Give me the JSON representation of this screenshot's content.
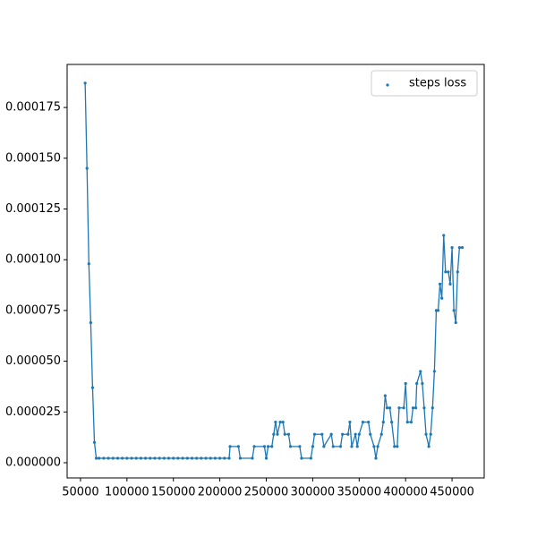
{
  "chart_data": {
    "type": "line",
    "markers": true,
    "x": [
      55000,
      57000,
      59000,
      61000,
      63000,
      65000,
      67000,
      70000,
      75000,
      80000,
      85000,
      90000,
      95000,
      100000,
      105000,
      110000,
      115000,
      120000,
      125000,
      130000,
      135000,
      140000,
      145000,
      150000,
      155000,
      160000,
      165000,
      170000,
      175000,
      180000,
      185000,
      190000,
      195000,
      200000,
      205000,
      210000,
      211000,
      220000,
      222000,
      235000,
      237000,
      248000,
      250000,
      252000,
      256000,
      258000,
      260000,
      262000,
      265000,
      268000,
      270000,
      274000,
      276000,
      286000,
      288000,
      298000,
      300000,
      302000,
      310000,
      312000,
      320000,
      322000,
      330000,
      332000,
      338000,
      340000,
      342000,
      346000,
      348000,
      350000,
      354000,
      360000,
      362000,
      366000,
      368000,
      370000,
      374000,
      376000,
      378000,
      380000,
      383000,
      385000,
      388000,
      391000,
      393000,
      398000,
      400000,
      402000,
      406000,
      408000,
      411000,
      412000,
      416000,
      418000,
      420000,
      422000,
      425000,
      427000,
      429000,
      431000,
      433000,
      435000,
      437000,
      439000,
      441000,
      443000,
      446000,
      448000,
      450000,
      452000,
      454000,
      456000,
      458000,
      461000
    ],
    "series": [
      {
        "name": "steps loss",
        "color": "#1f77b4",
        "values": [
          0.000187,
          0.000145,
          9.8e-05,
          6.9e-05,
          3.7e-05,
          1e-05,
          2.2e-06,
          2.2e-06,
          2.2e-06,
          2.2e-06,
          2.2e-06,
          2.2e-06,
          2.2e-06,
          2.2e-06,
          2.2e-06,
          2.2e-06,
          2.2e-06,
          2.2e-06,
          2.2e-06,
          2.2e-06,
          2.2e-06,
          2.2e-06,
          2.2e-06,
          2.2e-06,
          2.2e-06,
          2.2e-06,
          2.2e-06,
          2.2e-06,
          2.2e-06,
          2.2e-06,
          2.2e-06,
          2.2e-06,
          2.2e-06,
          2.2e-06,
          2.2e-06,
          2.2e-06,
          8e-06,
          8e-06,
          2.2e-06,
          2.2e-06,
          8e-06,
          8e-06,
          2.2e-06,
          8e-06,
          8e-06,
          1.4e-05,
          2e-05,
          1.4e-05,
          2e-05,
          2e-05,
          1.4e-05,
          1.4e-05,
          8e-06,
          8e-06,
          2.2e-06,
          2.2e-06,
          8e-06,
          1.4e-05,
          1.4e-05,
          8e-06,
          1.4e-05,
          8e-06,
          8e-06,
          1.4e-05,
          1.4e-05,
          2e-05,
          8e-06,
          1.4e-05,
          8e-06,
          1.4e-05,
          2e-05,
          2e-05,
          1.4e-05,
          8e-06,
          2.2e-06,
          8e-06,
          1.4e-05,
          2e-05,
          3.3e-05,
          2.7e-05,
          2.7e-05,
          2e-05,
          8e-06,
          8e-06,
          2.7e-05,
          2.7e-05,
          3.9e-05,
          2e-05,
          2e-05,
          2.7e-05,
          2.7e-05,
          3.9e-05,
          4.5e-05,
          3.9e-05,
          2.7e-05,
          1.4e-05,
          8e-06,
          1.4e-05,
          2.7e-05,
          4.5e-05,
          7.5e-05,
          7.5e-05,
          8.8e-05,
          8.1e-05,
          0.000112,
          9.4e-05,
          9.4e-05,
          8.8e-05,
          0.000106,
          7.5e-05,
          6.9e-05,
          9.4e-05,
          0.000106,
          0.000106
        ]
      }
    ],
    "xlim": [
      35600,
      484600
    ],
    "ylim": [
      -7.5e-06,
      0.0001962
    ],
    "xticks": [
      50000,
      100000,
      150000,
      200000,
      250000,
      300000,
      350000,
      400000,
      450000
    ],
    "yticks": [
      {
        "value": 0,
        "label": "0.000000"
      },
      {
        "value": 2.5e-05,
        "label": "0.000025"
      },
      {
        "value": 5e-05,
        "label": "0.000050"
      },
      {
        "value": 7.5e-05,
        "label": "0.000075"
      },
      {
        "value": 0.0001,
        "label": "0.000100"
      },
      {
        "value": 0.000125,
        "label": "0.000125"
      },
      {
        "value": 0.00015,
        "label": "0.000150"
      },
      {
        "value": 0.000175,
        "label": "0.000175"
      }
    ],
    "legend": "upper right"
  }
}
